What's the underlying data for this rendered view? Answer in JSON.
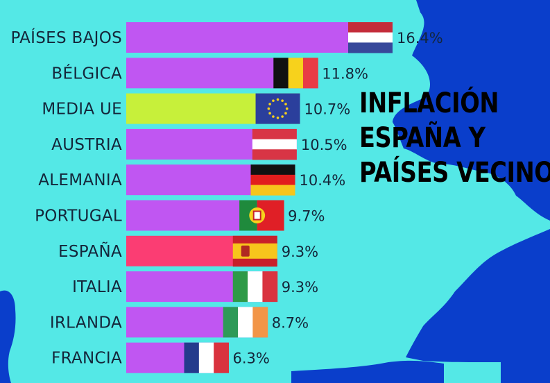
{
  "colors": {
    "background": "#54e8e6",
    "land": "#0a3ecb",
    "bar_default": "#c056f2",
    "bar_media_ue": "#c7f03a",
    "bar_espana": "#fb3d73",
    "label_text": "#14263a",
    "headline_text": "#000000"
  },
  "headline": {
    "line1": "INFLACIÓN",
    "line2": "ESPAÑA Y",
    "line3": "PAÍSES VECINOS"
  },
  "chart_data": {
    "type": "bar",
    "orientation": "horizontal",
    "title": "INFLACIÓN ESPAÑA Y PAÍSES VECINOS",
    "xlabel": "",
    "ylabel": "",
    "value_suffix": "%",
    "grid": false,
    "legend": "none",
    "xlim": [
      0,
      16.4
    ],
    "categories": [
      "PAÍSES BAJOS",
      "BÉLGICA",
      "MEDIA UE",
      "AUSTRIA",
      "ALEMANIA",
      "PORTUGAL",
      "ESPAÑA",
      "ITALIA",
      "IRLANDA",
      "FRANCIA"
    ],
    "values": [
      16.4,
      11.8,
      10.7,
      10.5,
      10.4,
      9.7,
      9.3,
      9.3,
      8.7,
      6.3
    ],
    "value_labels": [
      "16.4%",
      "11.8%",
      "10.7%",
      "10.5%",
      "10.4%",
      "9.7%",
      "9.3%",
      "9.3%",
      "8.7%",
      "6.3%"
    ],
    "flags": [
      "netherlands-flag",
      "belgium-flag",
      "eu-flag",
      "austria-flag",
      "germany-flag",
      "portugal-flag",
      "spain-flag",
      "italy-flag",
      "ireland-flag",
      "france-flag"
    ],
    "bar_colors": [
      "#c056f2",
      "#c056f2",
      "#c7f03a",
      "#c056f2",
      "#c056f2",
      "#c056f2",
      "#fb3d73",
      "#c056f2",
      "#c056f2",
      "#c056f2"
    ]
  }
}
